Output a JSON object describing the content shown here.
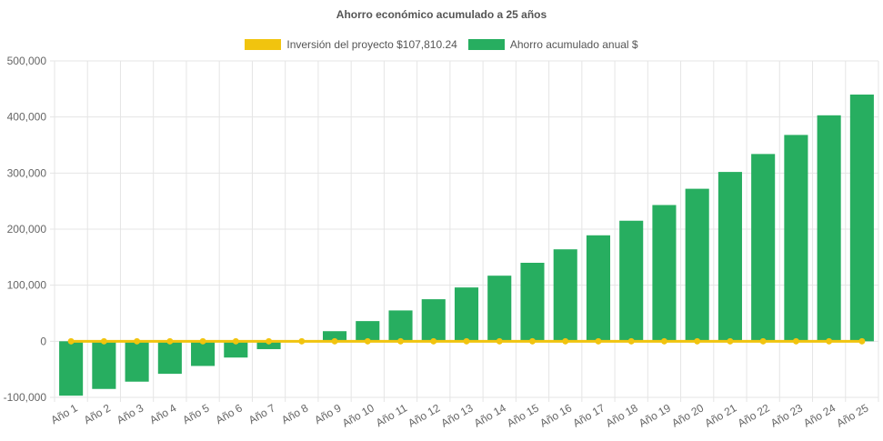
{
  "chart_data": {
    "type": "bar",
    "title": "Ahorro económico acumulado a 25 años",
    "categories": [
      "Año 1",
      "Año 2",
      "Año 3",
      "Año 4",
      "Año 5",
      "Año 6",
      "Año 7",
      "Año 8",
      "Año 9",
      "Año 10",
      "Año 11",
      "Año 12",
      "Año 13",
      "Año 14",
      "Año 15",
      "Año 16",
      "Año 17",
      "Año 18",
      "Año 19",
      "Año 20",
      "Año 21",
      "Año 22",
      "Año 23",
      "Año 24",
      "Año 25"
    ],
    "series": [
      {
        "name": "Inversión del proyecto $107,810.24",
        "type": "line",
        "color": "#f1c40f",
        "values": [
          0,
          0,
          0,
          0,
          0,
          0,
          0,
          0,
          0,
          0,
          0,
          0,
          0,
          0,
          0,
          0,
          0,
          0,
          0,
          0,
          0,
          0,
          0,
          0,
          0
        ]
      },
      {
        "name": "Ahorro acumulado anual $",
        "type": "bar",
        "color": "#27ae60",
        "values": [
          -97000,
          -85000,
          -72000,
          -58000,
          -44000,
          -29000,
          -14000,
          0,
          18000,
          36000,
          55000,
          75000,
          96000,
          117000,
          140000,
          164000,
          189000,
          215000,
          243000,
          272000,
          302000,
          334000,
          368000,
          403000,
          440000
        ]
      }
    ],
    "ylim": [
      -100000,
      500000
    ],
    "yticks": [
      -100000,
      0,
      100000,
      200000,
      300000,
      400000,
      500000
    ],
    "ytick_labels": [
      "-100,000",
      "0",
      "100,000",
      "200,000",
      "300,000",
      "400,000",
      "500,000"
    ],
    "grid": true,
    "legend_position": "top"
  }
}
